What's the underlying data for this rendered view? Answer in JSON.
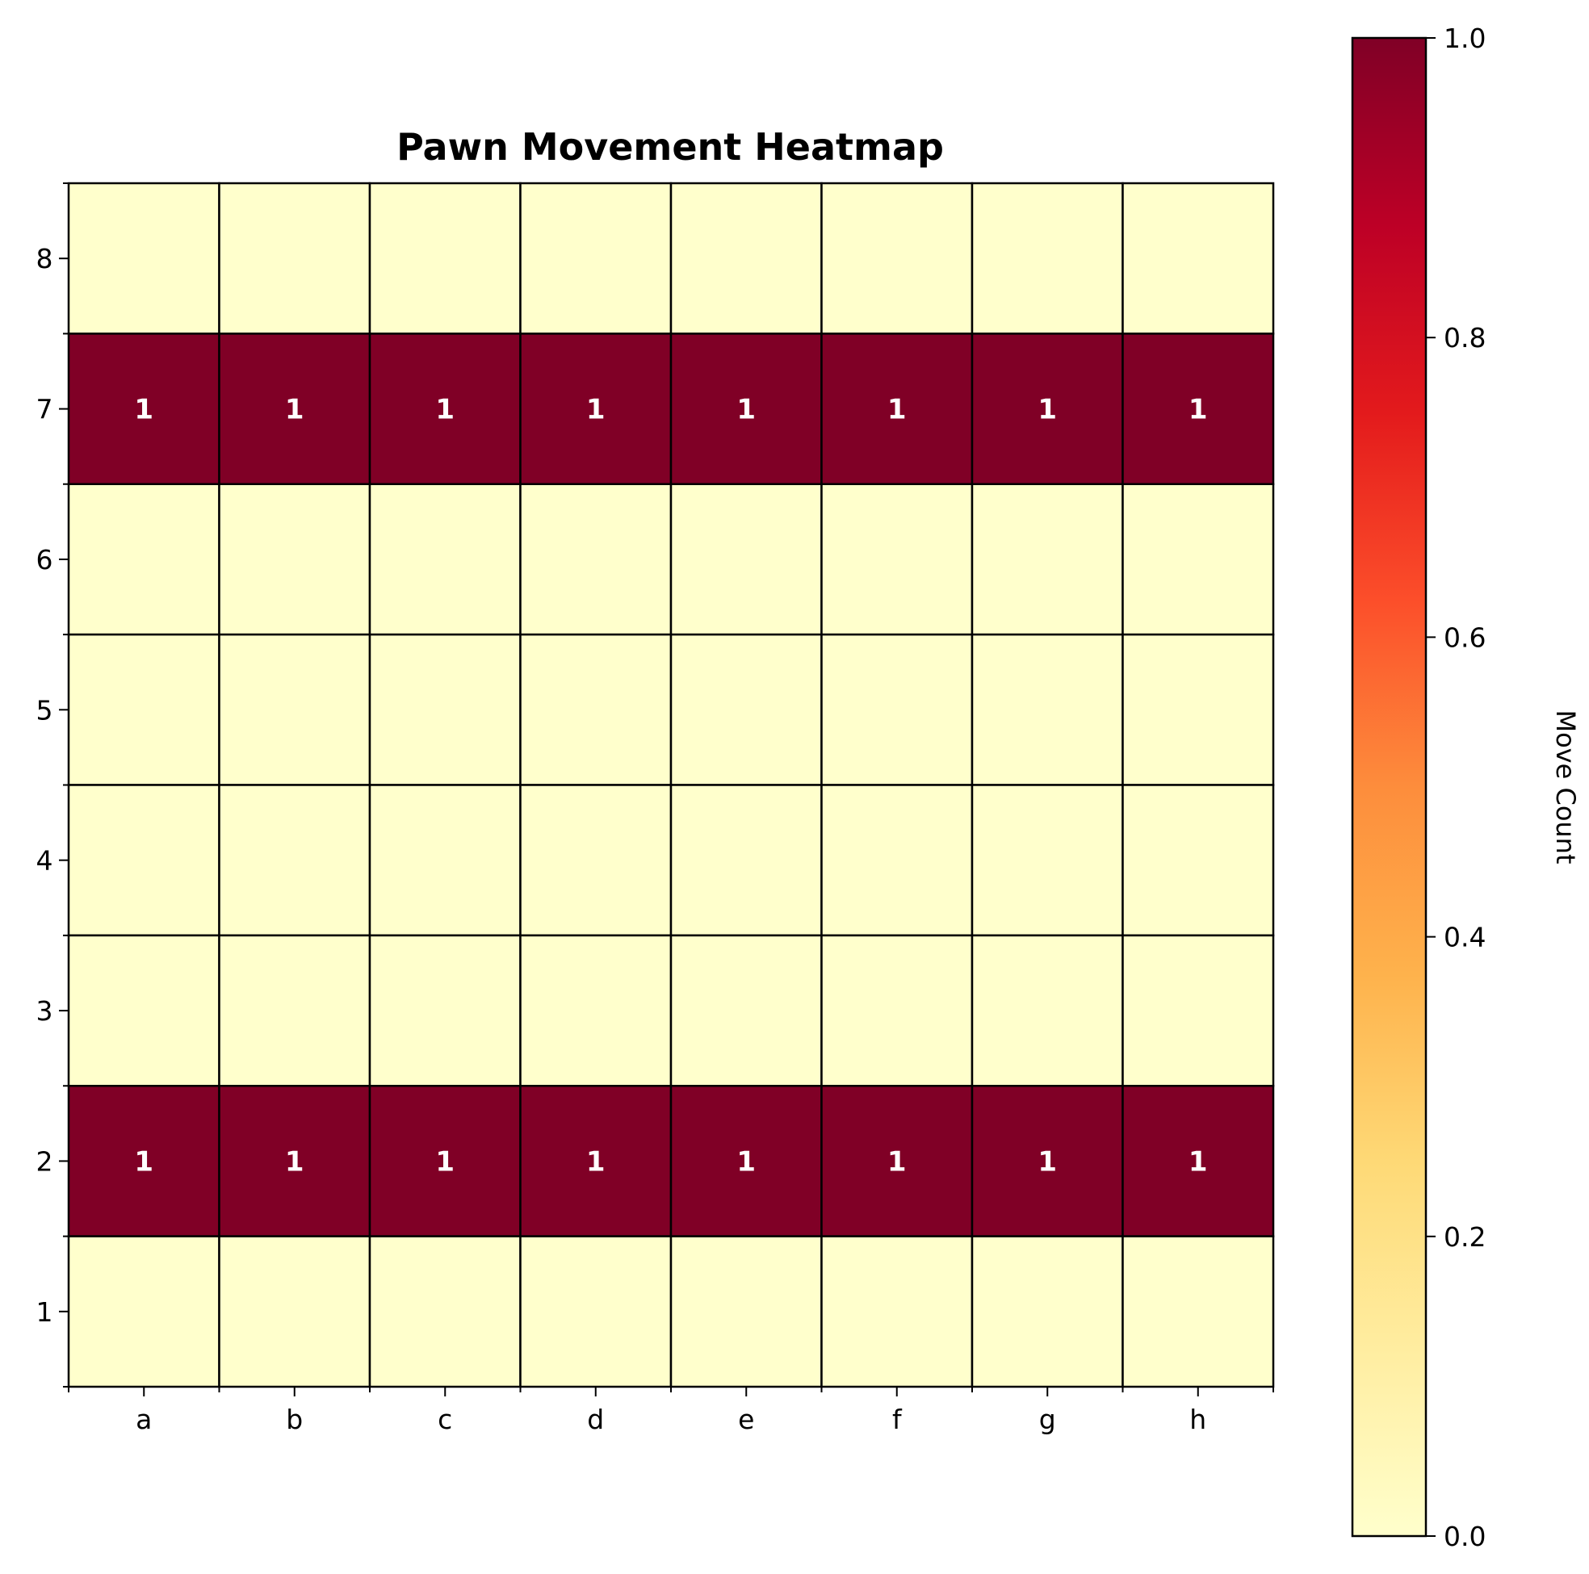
{
  "chart_data": {
    "type": "heatmap",
    "title": "Pawn Movement Heatmap",
    "x_categories": [
      "a",
      "b",
      "c",
      "d",
      "e",
      "f",
      "g",
      "h"
    ],
    "y_categories": [
      "8",
      "7",
      "6",
      "5",
      "4",
      "3",
      "2",
      "1"
    ],
    "values": [
      [
        0,
        0,
        0,
        0,
        0,
        0,
        0,
        0
      ],
      [
        1,
        1,
        1,
        1,
        1,
        1,
        1,
        1
      ],
      [
        0,
        0,
        0,
        0,
        0,
        0,
        0,
        0
      ],
      [
        0,
        0,
        0,
        0,
        0,
        0,
        0,
        0
      ],
      [
        0,
        0,
        0,
        0,
        0,
        0,
        0,
        0
      ],
      [
        0,
        0,
        0,
        0,
        0,
        0,
        0,
        0
      ],
      [
        1,
        1,
        1,
        1,
        1,
        1,
        1,
        1
      ],
      [
        0,
        0,
        0,
        0,
        0,
        0,
        0,
        0
      ]
    ],
    "cell_labels": [
      [
        "",
        "",
        "",
        "",
        "",
        "",
        "",
        ""
      ],
      [
        "1",
        "1",
        "1",
        "1",
        "1",
        "1",
        "1",
        "1"
      ],
      [
        "",
        "",
        "",
        "",
        "",
        "",
        "",
        ""
      ],
      [
        "",
        "",
        "",
        "",
        "",
        "",
        "",
        ""
      ],
      [
        "",
        "",
        "",
        "",
        "",
        "",
        "",
        ""
      ],
      [
        "",
        "",
        "",
        "",
        "",
        "",
        "",
        ""
      ],
      [
        "1",
        "1",
        "1",
        "1",
        "1",
        "1",
        "1",
        "1"
      ],
      [
        "",
        "",
        "",
        "",
        "",
        "",
        "",
        ""
      ]
    ],
    "colorbar": {
      "label": "Move Count",
      "range": [
        0,
        1
      ],
      "ticks": [
        "0.0",
        "0.2",
        "0.4",
        "0.6",
        "0.8",
        "1.0"
      ],
      "colormap": "YlOrRd",
      "colors": [
        "#ffffcc",
        "#ffeda0",
        "#fed976",
        "#feb24c",
        "#fd8d3c",
        "#fc4e2a",
        "#e31a1c",
        "#bd0026",
        "#800026"
      ]
    },
    "grid_color": "#000000"
  }
}
